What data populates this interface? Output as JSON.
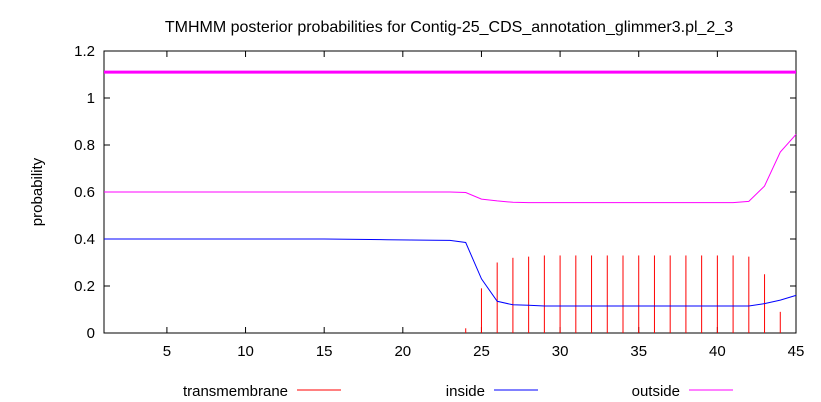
{
  "chart_data": {
    "type": "line",
    "title": "TMHMM posterior probabilities for Contig-25_CDS_annotation_glimmer3.pl_2_3",
    "xlabel": "",
    "ylabel": "probability",
    "xlim": [
      1,
      45
    ],
    "ylim": [
      0,
      1.2
    ],
    "xticks": [
      5,
      10,
      15,
      20,
      25,
      30,
      35,
      40,
      45
    ],
    "yticks": [
      0,
      0.2,
      0.4,
      0.6,
      0.8,
      1,
      1.2
    ],
    "ytick_labels": [
      "0",
      "0.2",
      "0.4",
      "0.6",
      "0.8",
      "1",
      "1.2"
    ],
    "grid": false,
    "legend_position": "bottom",
    "reference_line": {
      "y": 1.11,
      "color": "#ff00ff"
    },
    "series": [
      {
        "name": "transmembrane",
        "style": "impulses",
        "color": "#ff0000",
        "x": [
          24,
          25,
          26,
          27,
          28,
          29,
          30,
          31,
          32,
          33,
          34,
          35,
          36,
          37,
          38,
          39,
          40,
          41,
          42,
          43,
          44
        ],
        "values": [
          0.02,
          0.19,
          0.3,
          0.32,
          0.325,
          0.33,
          0.33,
          0.33,
          0.33,
          0.33,
          0.33,
          0.33,
          0.33,
          0.33,
          0.33,
          0.33,
          0.33,
          0.33,
          0.325,
          0.25,
          0.09
        ]
      },
      {
        "name": "inside",
        "style": "line",
        "color": "#0000ff",
        "x": [
          1,
          5,
          10,
          15,
          19,
          22,
          23,
          24,
          25,
          26,
          27,
          28,
          29,
          30,
          35,
          40,
          41,
          42,
          43,
          44,
          45
        ],
        "values": [
          0.4,
          0.4,
          0.4,
          0.4,
          0.397,
          0.395,
          0.394,
          0.385,
          0.23,
          0.135,
          0.12,
          0.118,
          0.115,
          0.115,
          0.115,
          0.115,
          0.115,
          0.115,
          0.125,
          0.14,
          0.16
        ]
      },
      {
        "name": "outside",
        "style": "line",
        "color": "#ff00ff",
        "x": [
          1,
          5,
          10,
          15,
          20,
          23,
          24,
          25,
          26,
          27,
          28,
          30,
          35,
          40,
          41,
          42,
          43,
          44,
          45
        ],
        "values": [
          0.6,
          0.6,
          0.6,
          0.6,
          0.6,
          0.6,
          0.598,
          0.57,
          0.562,
          0.556,
          0.555,
          0.555,
          0.555,
          0.555,
          0.555,
          0.56,
          0.625,
          0.77,
          0.845
        ]
      }
    ]
  }
}
